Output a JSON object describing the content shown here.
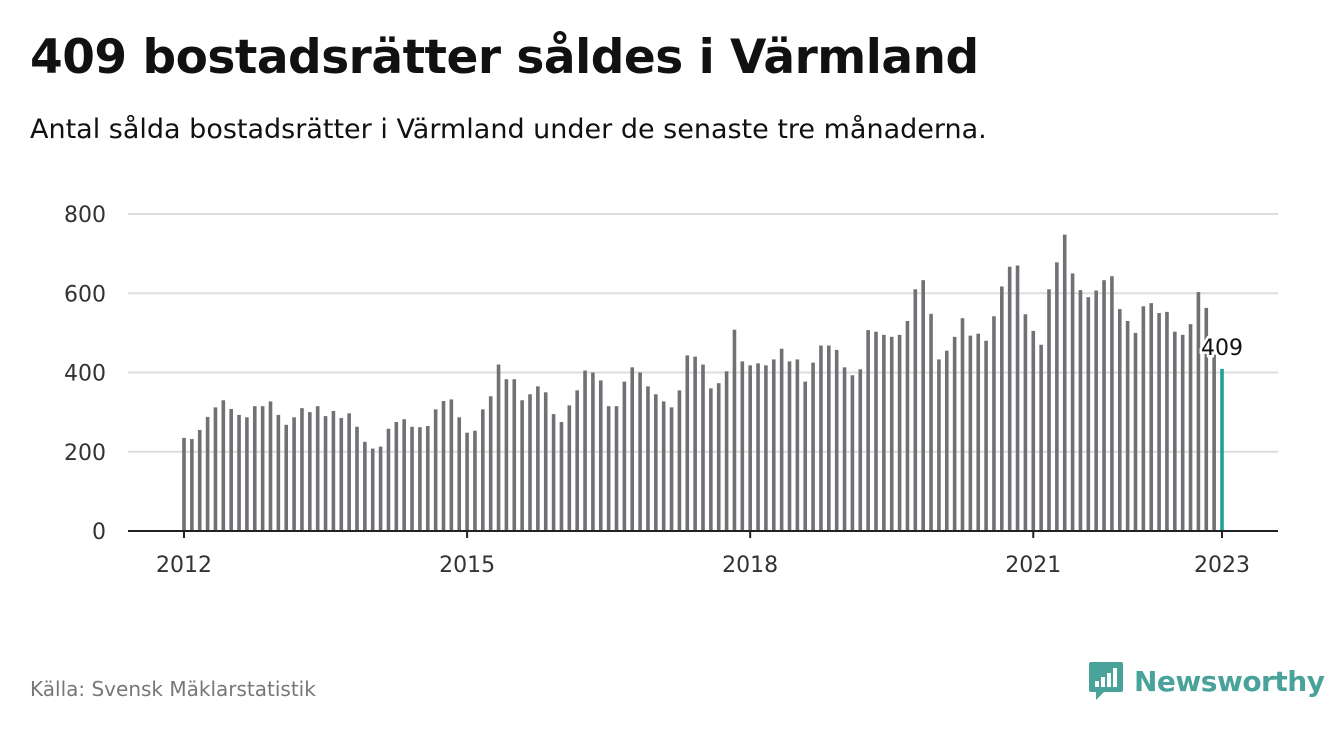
{
  "header": {
    "title": "409 bostadsrätter såldes i Värmland",
    "subtitle": "Antal sålda bostadsrätter i Värmland under de senaste tre månaderna."
  },
  "footer": {
    "source": "Källa: Svensk Mäklarstatistik",
    "brand": "Newsworthy",
    "brand_icon": "newsworthy-logo-icon"
  },
  "colors": {
    "bar": "#707075",
    "highlight": "#1fa296",
    "grid": "#dddddd",
    "axis": "#222222",
    "brand": "#4aa39b"
  },
  "chart_data": {
    "type": "bar",
    "x_start": "2012-01",
    "x_end": "2023-01",
    "x_tick_labels": [
      "2012",
      "2015",
      "2018",
      "2021",
      "2023"
    ],
    "y_ticks": [
      0,
      200,
      400,
      600,
      800
    ],
    "ylim": [
      0,
      800
    ],
    "grid": true,
    "highlight_label": "409",
    "values": [
      235,
      232,
      255,
      288,
      312,
      330,
      308,
      293,
      287,
      315,
      315,
      327,
      293,
      268,
      287,
      310,
      300,
      315,
      290,
      303,
      285,
      297,
      263,
      225,
      208,
      213,
      258,
      275,
      282,
      263,
      262,
      265,
      307,
      328,
      332,
      287,
      248,
      253,
      307,
      340,
      420,
      383,
      383,
      330,
      345,
      365,
      350,
      295,
      275,
      317,
      355,
      405,
      400,
      380,
      315,
      315,
      377,
      413,
      400,
      365,
      345,
      327,
      312,
      355,
      443,
      440,
      420,
      360,
      373,
      403,
      508,
      428,
      418,
      423,
      418,
      433,
      460,
      428,
      433,
      377,
      425,
      468,
      468,
      457,
      413,
      393,
      408,
      507,
      503,
      495,
      490,
      495,
      530,
      610,
      633,
      548,
      433,
      455,
      490,
      537,
      493,
      498,
      480,
      542,
      617,
      667,
      670,
      547,
      505,
      470,
      610,
      678,
      748,
      650,
      608,
      590,
      607,
      633,
      643,
      560,
      530,
      500,
      567,
      575,
      550,
      553,
      503,
      495,
      522,
      603,
      563,
      445,
      409
    ]
  }
}
